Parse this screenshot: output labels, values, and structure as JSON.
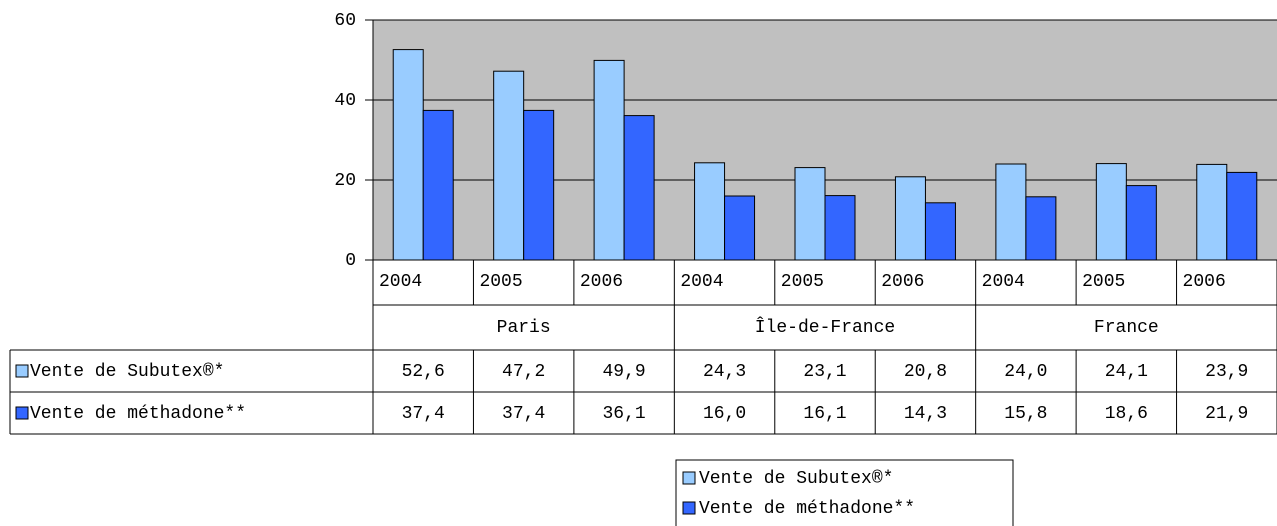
{
  "chart_data": {
    "type": "bar",
    "categories": [
      "2004",
      "2005",
      "2006",
      "2004",
      "2005",
      "2006",
      "2004",
      "2005",
      "2006"
    ],
    "groups": [
      "Paris",
      "Île-de-France",
      "France"
    ],
    "series": [
      {
        "name": "Vente de Subutex®*",
        "color": "#99ccff",
        "values": [
          52.6,
          47.2,
          49.9,
          24.3,
          23.1,
          20.8,
          24.0,
          24.1,
          23.9
        ],
        "value_labels": [
          "52,6",
          "47,2",
          "49,9",
          "24,3",
          "23,1",
          "20,8",
          "24,0",
          "24,1",
          "23,9"
        ]
      },
      {
        "name": "Vente de méthadone**",
        "color": "#3366ff",
        "values": [
          37.4,
          37.4,
          36.1,
          16.0,
          16.1,
          14.3,
          15.8,
          18.6,
          21.9
        ],
        "value_labels": [
          "37,4",
          "37,4",
          "36,1",
          "16,0",
          "16,1",
          "14,3",
          "15,8",
          "18,6",
          "21,9"
        ]
      }
    ],
    "ylim": [
      0,
      60
    ],
    "yticks": [
      0,
      20,
      40,
      60
    ],
    "grid": true
  }
}
